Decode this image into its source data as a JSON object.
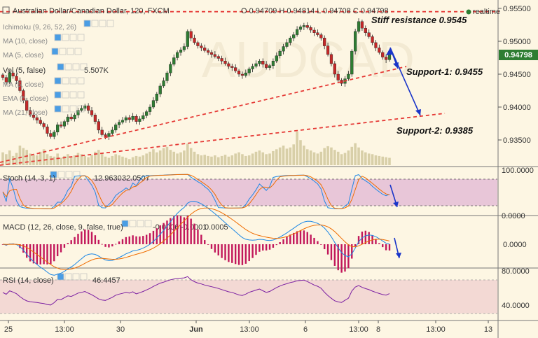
{
  "header": {
    "title": "Australian Dollar/Canadian Dollar, 120, FXCM",
    "ohlc": "O 0.94709 H 0.94814 L 0.94708 C 0.94798",
    "realtime_label": "realtime"
  },
  "indicators": {
    "ichimoku": "Ichimoku (9, 26, 52, 26)",
    "ma10": "MA (10, close)",
    "ma5": "MA (5, close)",
    "vol": "Vol (5, false)",
    "vol_value": "5.507K",
    "ma_b": "MA (5, close)",
    "ema": "EMA (5, close)",
    "ma21": "MA (21, close)"
  },
  "price_axis": {
    "ticks": [
      "0.95500",
      "0.95000",
      "0.94500",
      "0.94000",
      "0.93500"
    ],
    "current": "0.94798",
    "current_color": "#2e7d32"
  },
  "annotations": {
    "resistance": "Stiff resistance 0.9545",
    "support1": "Support-1: 0.9455",
    "support2": "Support-2: 0.9385"
  },
  "stoch": {
    "label": "Stoch (14, 3, 1)",
    "v1": "12.9630",
    "v2": "32.0507",
    "ticks": [
      "100.0000",
      "0.0000"
    ]
  },
  "macd": {
    "label": "MACD (12, 26, close, 9, false, true)",
    "v1": "-0.0006",
    "v2": "-0.0001",
    "v3": "0.0005",
    "ticks": [
      "0.0000"
    ]
  },
  "rsi": {
    "label": "RSI (14, close)",
    "value": "46.4457",
    "ticks": [
      "80.0000",
      "40.0000"
    ]
  },
  "time_axis": [
    "25",
    "13:00",
    "30",
    "Jun",
    "13:00",
    "6",
    "13:00",
    "8",
    "13:00",
    "13"
  ],
  "colors": {
    "up": "#2e7d32",
    "down": "#c62828",
    "macd_hist": "#c2185b",
    "stoch_k": "#1e88e5",
    "stoch_d": "#ef6c00",
    "rsi": "#7b1fa2",
    "trend": "#e53935",
    "arrow": "#1a35c9"
  },
  "chart_data": {
    "type": "candlestick",
    "title": "Australian Dollar/Canadian Dollar, 120, FXCM",
    "ylim": [
      0.932,
      0.956
    ],
    "close": [
      0.9445,
      0.9438,
      0.9452,
      0.9447,
      0.944,
      0.9425,
      0.941,
      0.9395,
      0.9388,
      0.9384,
      0.938,
      0.9375,
      0.937,
      0.936,
      0.9355,
      0.9362,
      0.9373,
      0.9371,
      0.9378,
      0.9385,
      0.9382,
      0.9388,
      0.9395,
      0.9398,
      0.9402,
      0.9395,
      0.9388,
      0.9378,
      0.9365,
      0.9358,
      0.9355,
      0.936,
      0.9365,
      0.9373,
      0.9377,
      0.938,
      0.9384,
      0.9381,
      0.9386,
      0.9378,
      0.9382,
      0.9387,
      0.9393,
      0.94,
      0.941,
      0.942,
      0.9432,
      0.944,
      0.9452,
      0.9465,
      0.9475,
      0.9483,
      0.9487,
      0.9492,
      0.9515,
      0.9505,
      0.9498,
      0.9493,
      0.949,
      0.9486,
      0.9483,
      0.948,
      0.9477,
      0.9474,
      0.947,
      0.9466,
      0.9462,
      0.946,
      0.9455,
      0.945,
      0.9448,
      0.9452,
      0.9458,
      0.9462,
      0.9466,
      0.947,
      0.9465,
      0.946,
      0.9463,
      0.947,
      0.9478,
      0.9485,
      0.9492,
      0.9498,
      0.9505,
      0.951,
      0.9518,
      0.9522,
      0.9524,
      0.9521,
      0.9517,
      0.9513,
      0.951,
      0.9505,
      0.9493,
      0.948,
      0.9466,
      0.945,
      0.9441,
      0.9436,
      0.9443,
      0.945,
      0.9485,
      0.9515,
      0.953,
      0.952,
      0.9513,
      0.9507,
      0.9498,
      0.949,
      0.9483,
      0.9476,
      0.9472,
      0.948
    ],
    "volume": [
      2.1,
      1.8,
      2.4,
      1.5,
      2.0,
      3.2,
      2.8,
      2.5,
      1.9,
      1.7,
      1.6,
      2.2,
      2.6,
      1.8,
      1.5,
      1.4,
      1.9,
      1.2,
      1.5,
      1.8,
      1.3,
      1.6,
      2.0,
      1.8,
      1.5,
      1.3,
      1.7,
      2.2,
      2.5,
      1.9,
      1.4,
      1.2,
      1.5,
      1.8,
      1.6,
      1.4,
      1.2,
      1.0,
      1.3,
      1.5,
      1.4,
      1.6,
      1.9,
      2.2,
      2.6,
      2.1,
      2.4,
      2.8,
      3.0,
      2.5,
      2.2,
      1.9,
      2.1,
      2.4,
      3.5,
      2.8,
      2.2,
      1.8,
      1.6,
      1.7,
      1.5,
      1.4,
      1.6,
      1.3,
      1.5,
      1.7,
      1.4,
      1.6,
      1.9,
      2.1,
      1.8,
      1.5,
      1.6,
      1.9,
      2.2,
      2.4,
      2.1,
      1.8,
      1.9,
      2.3,
      2.6,
      2.9,
      3.2,
      2.7,
      2.9,
      3.4,
      5.5,
      4.1,
      3.2,
      2.6,
      2.4,
      2.1,
      1.9,
      2.2,
      2.8,
      3.1,
      2.9,
      2.5,
      2.2,
      1.8,
      2.0,
      2.4,
      3.0,
      3.6,
      2.9,
      2.4,
      2.1,
      1.9,
      1.8,
      1.6,
      1.5,
      1.4,
      1.3,
      1.2
    ],
    "resistance": 0.9545,
    "support1": 0.9455,
    "support2": 0.9385
  }
}
